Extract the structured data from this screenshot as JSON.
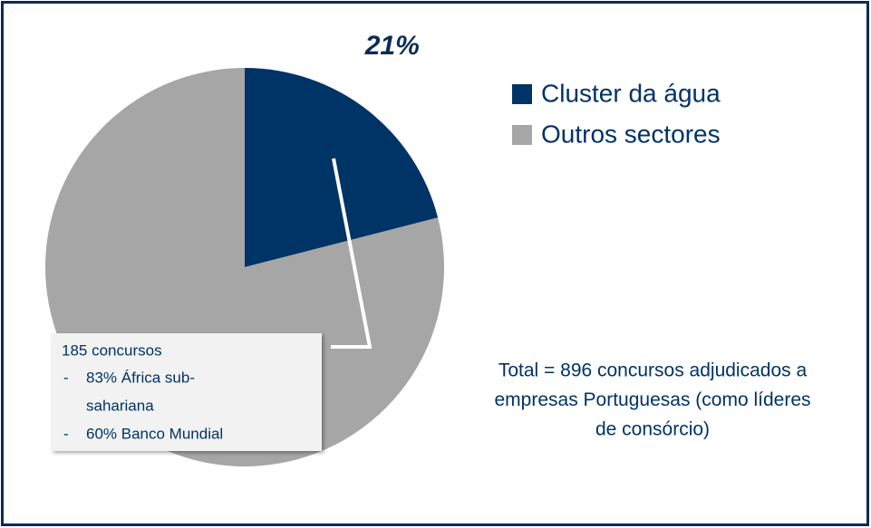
{
  "chart_data": {
    "type": "pie",
    "categories": [
      "Cluster da água",
      "Outros sectores"
    ],
    "values": [
      21,
      79
    ],
    "value_labels": [
      "21%",
      null
    ],
    "colors": [
      "#003366",
      "#a6a6a6"
    ],
    "legend": "top-right",
    "callout": {
      "title": "185 concursos",
      "bullets": [
        {
          "marker": "-",
          "text": [
            "83% África sub-",
            "sahariana"
          ]
        },
        {
          "marker": "-",
          "text": [
            "60% Banco Mundial"
          ]
        }
      ]
    },
    "total_note": [
      "Total = 896 concursos adjudicados a",
      "empresas Portuguesas (como líderes",
      "de consórcio)"
    ]
  }
}
